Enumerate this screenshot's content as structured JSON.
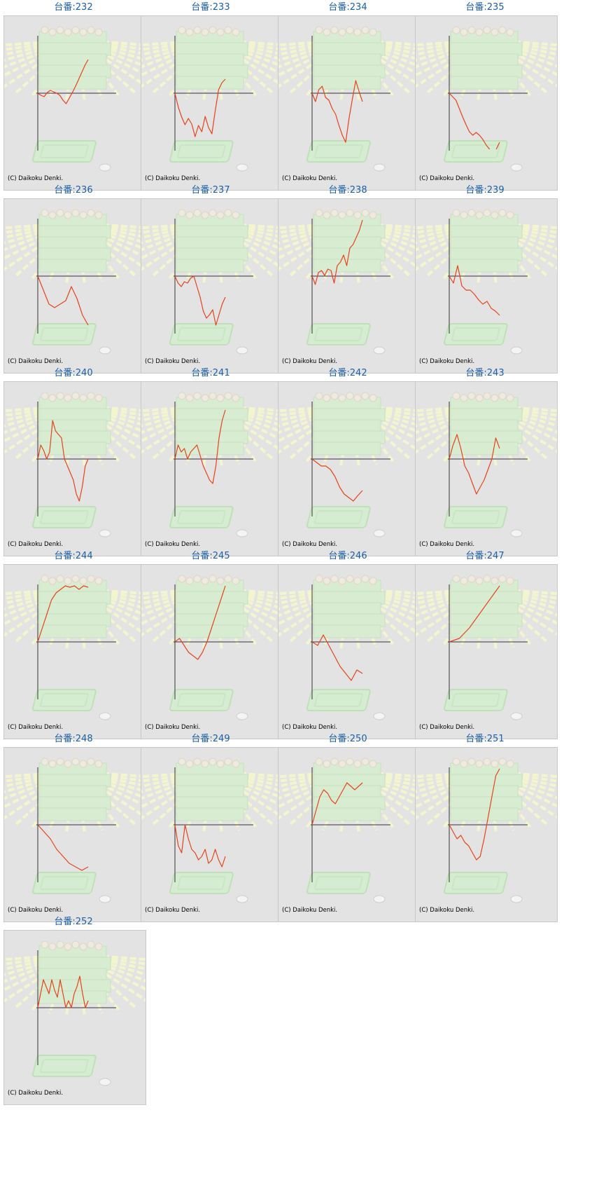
{
  "copyright": "(C) Daikoku Denki.",
  "colors": {
    "line": "#e8421a",
    "axis": "#333333",
    "title": "#1a5ea8",
    "panel_bg": "#e3e3e3"
  },
  "chart_data": [
    {
      "type": "line",
      "title": "台番:232",
      "y": [
        0,
        -3,
        -5,
        1,
        4,
        2,
        0,
        -3,
        -10,
        -15,
        -7,
        1,
        10,
        20,
        30,
        40,
        48
      ]
    },
    {
      "type": "line",
      "title": "台番:233",
      "y": [
        0,
        -20,
        -34,
        -45,
        -36,
        -44,
        -62,
        -46,
        -55,
        -33,
        -49,
        -58,
        -25,
        5,
        15,
        20
      ]
    },
    {
      "type": "line",
      "title": "台番:234",
      "y": [
        0,
        -12,
        5,
        10,
        -6,
        -10,
        -22,
        -30,
        -46,
        -60,
        -70,
        -36,
        -8,
        18,
        2,
        -12
      ]
    },
    {
      "type": "line",
      "title": "台番:235",
      "y": [
        0,
        -5,
        -10,
        -22,
        -34,
        -45,
        -55,
        -60,
        -56,
        -60,
        -66,
        -74,
        -80,
        null,
        -80,
        -70
      ]
    },
    {
      "type": "line",
      "title": "台番:236",
      "y": [
        0,
        -20,
        -40,
        -45,
        -40,
        -35,
        -15,
        -32,
        -56,
        -70
      ]
    },
    {
      "type": "line",
      "title": "台番:237",
      "y": [
        0,
        -10,
        -15,
        -8,
        -10,
        -3,
        0,
        -15,
        -30,
        -50,
        -60,
        -55,
        -48,
        -70,
        -55,
        -40,
        -30
      ]
    },
    {
      "type": "line",
      "title": "台番:238",
      "y": [
        0,
        -12,
        5,
        8,
        1,
        10,
        8,
        -10,
        15,
        20,
        30,
        15,
        40,
        45,
        55,
        65,
        80
      ]
    },
    {
      "type": "line",
      "title": "台番:239",
      "y": [
        0,
        -10,
        15,
        -14,
        -20,
        -20,
        -26,
        -34,
        -40,
        -36,
        -46,
        -50,
        -56
      ]
    },
    {
      "type": "line",
      "title": "台番:240",
      "y": [
        0,
        20,
        12,
        0,
        10,
        55,
        40,
        35,
        30,
        0,
        -10,
        -20,
        -30,
        -50,
        -60,
        -40,
        -10,
        0
      ]
    },
    {
      "type": "line",
      "title": "台番:241",
      "y": [
        0,
        20,
        10,
        15,
        0,
        10,
        15,
        20,
        5,
        -10,
        -20,
        -30,
        -35,
        -10,
        30,
        55,
        70
      ]
    },
    {
      "type": "line",
      "title": "台番:242",
      "y": [
        0,
        -5,
        -10,
        -10,
        -15,
        -25,
        -40,
        -50,
        -55,
        -60,
        -52,
        -45
      ]
    },
    {
      "type": "line",
      "title": "台番:243",
      "y": [
        0,
        20,
        35,
        15,
        -10,
        -20,
        -35,
        -50,
        -40,
        -30,
        -15,
        0,
        30,
        15
      ]
    },
    {
      "type": "line",
      "title": "台番:244",
      "y": [
        0,
        20,
        40,
        60,
        70,
        75,
        80,
        78,
        80,
        75,
        80,
        78
      ]
    },
    {
      "type": "line",
      "title": "台番:245",
      "y": [
        0,
        5,
        -5,
        -15,
        -20,
        -25,
        -15,
        0,
        20,
        40,
        60,
        80
      ]
    },
    {
      "type": "line",
      "title": "台番:246",
      "y": [
        0,
        -5,
        10,
        -5,
        -20,
        -35,
        -45,
        -55,
        -40,
        -45
      ]
    },
    {
      "type": "line",
      "title": "台番:247",
      "y": [
        0,
        5,
        20,
        40,
        60,
        80
      ]
    },
    {
      "type": "line",
      "title": "台番:248",
      "y": [
        0,
        -10,
        -20,
        -35,
        -45,
        -55,
        -60,
        -65,
        -60
      ]
    },
    {
      "type": "line",
      "title": "台番:249",
      "y": [
        0,
        -30,
        -40,
        0,
        -20,
        -35,
        -40,
        -50,
        -45,
        -35,
        -55,
        -50,
        -35,
        -50,
        -60,
        -45
      ]
    },
    {
      "type": "line",
      "title": "台番:250",
      "y": [
        0,
        20,
        40,
        50,
        45,
        35,
        30,
        40,
        50,
        60,
        55,
        50,
        55,
        60
      ]
    },
    {
      "type": "line",
      "title": "台番:251",
      "y": [
        0,
        -10,
        -20,
        -15,
        -25,
        -30,
        -40,
        -50,
        -45,
        -20,
        10,
        40,
        70,
        80
      ]
    },
    {
      "type": "line",
      "title": "台番:252",
      "y": [
        0,
        20,
        40,
        30,
        20,
        40,
        25,
        15,
        40,
        20,
        0,
        10,
        0,
        20,
        30,
        45,
        20,
        0,
        10
      ]
    }
  ]
}
